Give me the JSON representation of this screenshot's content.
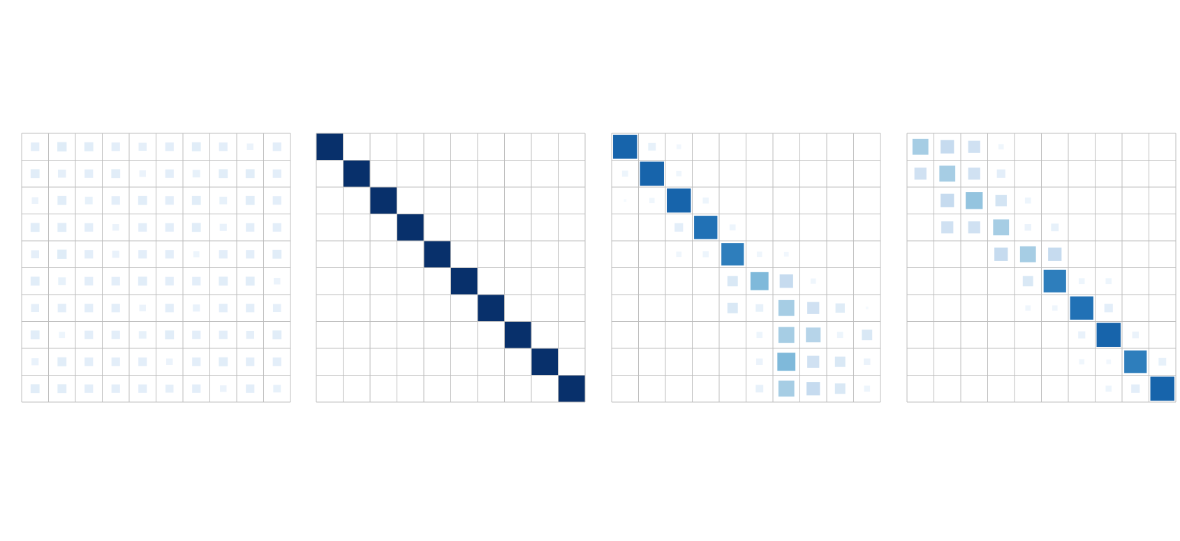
{
  "chart_data": [
    {
      "type": "heatmap",
      "clim": [
        0,
        1
      ],
      "colormap": [
        "#f7fbff",
        "#deebf7",
        "#c6dbef",
        "#9ecae1",
        "#6baed6",
        "#4292c6",
        "#2171b5",
        "#08519c",
        "#08306b"
      ],
      "values": [
        [
          0.1,
          0.12,
          0.11,
          0.1,
          0.09,
          0.1,
          0.11,
          0.1,
          0.06,
          0.1
        ],
        [
          0.11,
          0.09,
          0.1,
          0.11,
          0.06,
          0.1,
          0.08,
          0.11,
          0.11,
          0.1
        ],
        [
          0.06,
          0.11,
          0.08,
          0.1,
          0.11,
          0.1,
          0.11,
          0.08,
          0.11,
          0.1
        ],
        [
          0.11,
          0.11,
          0.1,
          0.06,
          0.1,
          0.1,
          0.11,
          0.07,
          0.1,
          0.1
        ],
        [
          0.09,
          0.12,
          0.1,
          0.07,
          0.1,
          0.1,
          0.05,
          0.1,
          0.1,
          0.11
        ],
        [
          0.11,
          0.08,
          0.1,
          0.1,
          0.11,
          0.1,
          0.1,
          0.11,
          0.11,
          0.06
        ],
        [
          0.09,
          0.1,
          0.1,
          0.1,
          0.06,
          0.1,
          0.07,
          0.1,
          0.1,
          0.09
        ],
        [
          0.11,
          0.05,
          0.1,
          0.1,
          0.08,
          0.11,
          0.1,
          0.1,
          0.09,
          0.11
        ],
        [
          0.07,
          0.11,
          0.1,
          0.1,
          0.1,
          0.06,
          0.1,
          0.11,
          0.1,
          0.1
        ],
        [
          0.11,
          0.11,
          0.1,
          0.1,
          0.1,
          0.09,
          0.1,
          0.06,
          0.1,
          0.08
        ]
      ]
    },
    {
      "type": "heatmap",
      "clim": [
        0,
        1
      ],
      "colormap": [
        "#f7fbff",
        "#deebf7",
        "#c6dbef",
        "#9ecae1",
        "#6baed6",
        "#4292c6",
        "#2171b5",
        "#08519c",
        "#08306b"
      ],
      "values": [
        [
          1,
          0,
          0,
          0,
          0,
          0,
          0,
          0,
          0,
          0
        ],
        [
          0,
          1,
          0,
          0,
          0,
          0,
          0,
          0,
          0,
          0
        ],
        [
          0,
          0,
          1,
          0,
          0,
          0,
          0,
          0,
          0,
          0
        ],
        [
          0,
          0,
          0,
          1,
          0,
          0,
          0,
          0,
          0,
          0
        ],
        [
          0,
          0,
          0,
          0,
          1,
          0,
          0,
          0,
          0,
          0
        ],
        [
          0,
          0,
          0,
          0,
          0,
          1,
          0,
          0,
          0,
          0
        ],
        [
          0,
          0,
          0,
          0,
          0,
          0,
          1,
          0,
          0,
          0
        ],
        [
          0,
          0,
          0,
          0,
          0,
          0,
          0,
          1,
          0,
          0
        ],
        [
          0,
          0,
          0,
          0,
          0,
          0,
          0,
          0,
          1,
          0
        ],
        [
          0,
          0,
          0,
          0,
          0,
          0,
          0,
          0,
          0,
          1
        ]
      ]
    },
    {
      "type": "heatmap",
      "clim": [
        0,
        1
      ],
      "colormap": [
        "#f7fbff",
        "#deebf7",
        "#c6dbef",
        "#9ecae1",
        "#6baed6",
        "#4292c6",
        "#2171b5",
        "#08519c",
        "#08306b"
      ],
      "values": [
        [
          0.8,
          0.08,
          0.03,
          0,
          0,
          0,
          0,
          0,
          0,
          0
        ],
        [
          0.05,
          0.8,
          0.04,
          0,
          0,
          0,
          0,
          0,
          0,
          0
        ],
        [
          0.01,
          0.04,
          0.8,
          0.05,
          0,
          0,
          0,
          0,
          0,
          0
        ],
        [
          0,
          0,
          0.1,
          0.75,
          0.05,
          0,
          0,
          0,
          0,
          0
        ],
        [
          0,
          0,
          0.04,
          0.05,
          0.7,
          0.04,
          0.03,
          0,
          0,
          0
        ],
        [
          0,
          0,
          0,
          0,
          0.15,
          0.45,
          0.25,
          0.04,
          0,
          0
        ],
        [
          0,
          0,
          0,
          0,
          0.15,
          0.08,
          0.35,
          0.2,
          0.12,
          0.01
        ],
        [
          0,
          0,
          0,
          0,
          0,
          0.05,
          0.35,
          0.3,
          0.05,
          0.15
        ],
        [
          0,
          0,
          0,
          0,
          0,
          0.06,
          0.45,
          0.2,
          0.15,
          0.06
        ],
        [
          0,
          0,
          0,
          0,
          0,
          0.08,
          0.35,
          0.25,
          0.15,
          0.05
        ]
      ]
    },
    {
      "type": "heatmap",
      "clim": [
        0,
        1
      ],
      "colormap": [
        "#f7fbff",
        "#deebf7",
        "#c6dbef",
        "#9ecae1",
        "#6baed6",
        "#4292c6",
        "#2171b5",
        "#08519c",
        "#08306b"
      ],
      "values": [
        [
          0.35,
          0.25,
          0.2,
          0.04,
          0,
          0,
          0,
          0,
          0,
          0
        ],
        [
          0.2,
          0.35,
          0.2,
          0.1,
          0,
          0,
          0,
          0,
          0,
          0
        ],
        [
          0,
          0.25,
          0.4,
          0.18,
          0.05,
          0,
          0,
          0,
          0,
          0
        ],
        [
          0,
          0.2,
          0.2,
          0.35,
          0.06,
          0.08,
          0,
          0,
          0,
          0
        ],
        [
          0,
          0,
          0,
          0.25,
          0.35,
          0.25,
          0,
          0,
          0,
          0
        ],
        [
          0,
          0,
          0,
          0,
          0.15,
          0.7,
          0.05,
          0.05,
          0,
          0
        ],
        [
          0,
          0,
          0,
          0,
          0.04,
          0.04,
          0.75,
          0.1,
          0,
          0
        ],
        [
          0,
          0,
          0,
          0,
          0,
          0,
          0.07,
          0.8,
          0.06,
          0
        ],
        [
          0,
          0,
          0,
          0,
          0,
          0,
          0.04,
          0.03,
          0.7,
          0.08
        ],
        [
          0,
          0,
          0,
          0,
          0,
          0,
          0,
          0.05,
          0.1,
          0.8
        ]
      ]
    }
  ]
}
